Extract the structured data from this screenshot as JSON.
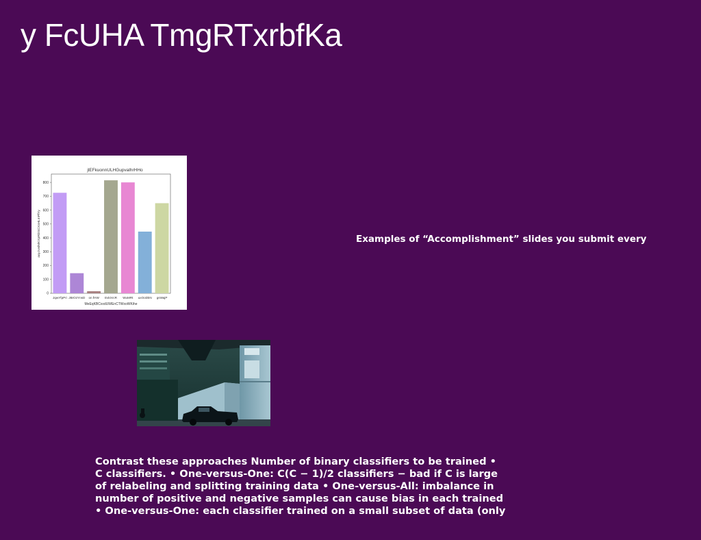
{
  "slide": {
    "title": "y FcUHA TmgRTxrbfKa",
    "caption": "Examples of “Accomplishment” slides you submit every",
    "body_lines": [
      "Contrast these approaches Number of binary classifiers to be trained •",
      "C classifiers. • One-versus-One: C(C − 1)/2 classifiers − bad if C is large",
      "of relabeling and splitting training data • One-versus-All: imbalance in",
      "number of positive and negative samples can cause bias in each trained",
      "• One-versus-One: each classifier trained on a small subset of data (only"
    ]
  },
  "colors": {
    "background": "#4b0a55",
    "text": "#ffffff"
  },
  "chart_data": {
    "type": "bar",
    "title": "jlEFkuonnULHGupvalhrHHo",
    "xlabel": "MeEqKBCxxdUWEnCTWxoWKihe",
    "ylabel": "auyJvwlMKXpRDSCXsHLmPfYy",
    "categories": [
      "JqwYfpPri",
      "JBrOzYnsD",
      "on fHW",
      "EvkXrcR",
      "WuMRt",
      "uxOoDkN",
      "gsWajP"
    ],
    "values": [
      725,
      145,
      15,
      815,
      800,
      445,
      650
    ],
    "colors": [
      "#c29cf5",
      "#ad86d6",
      "#a98282",
      "#a4a78f",
      "#e887d3",
      "#83b0d9",
      "#cdd7a3"
    ],
    "ylim": [
      0,
      860
    ],
    "yticks": [
      0,
      100,
      200,
      300,
      400,
      500,
      600,
      700,
      800
    ],
    "grid": false
  }
}
